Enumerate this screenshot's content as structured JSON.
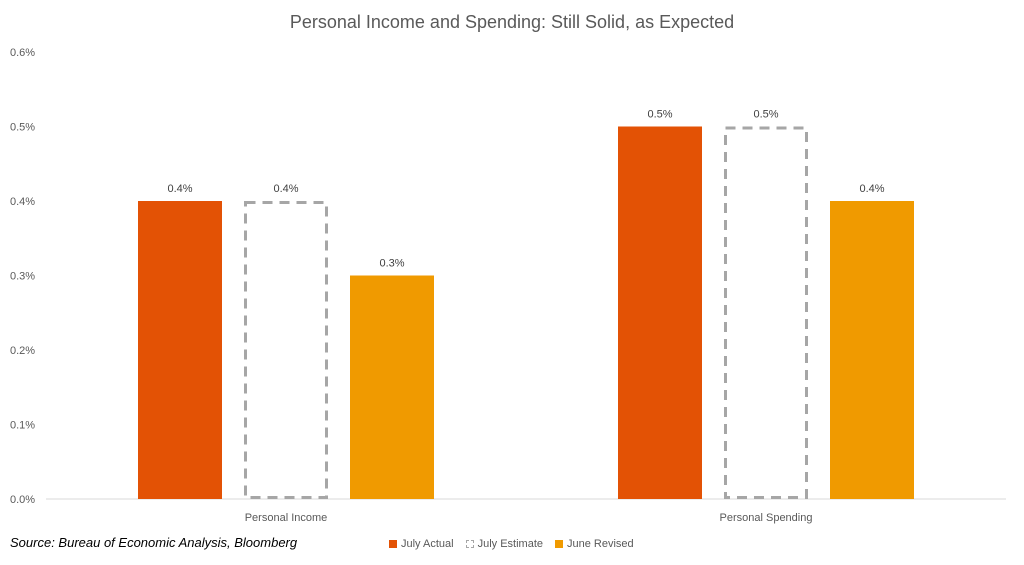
{
  "chart_data": {
    "type": "bar",
    "title": "Personal Income and Spending: Still Solid, as Expected",
    "categories": [
      "Personal Income",
      "Personal Spending"
    ],
    "series": [
      {
        "name": "July Actual",
        "values": [
          0.4,
          0.5
        ],
        "color": "#E35205",
        "style": "solid"
      },
      {
        "name": "July Estimate",
        "values": [
          0.4,
          0.5
        ],
        "color": "#A6A6A6",
        "style": "dashed"
      },
      {
        "name": "June Revised",
        "values": [
          0.3,
          0.4
        ],
        "color": "#F09A00",
        "style": "solid"
      }
    ],
    "ylim": [
      0,
      0.6
    ],
    "yticks": [
      0,
      0.1,
      0.2,
      0.3,
      0.4,
      0.5,
      0.6
    ],
    "ytick_labels": [
      "0.0%",
      "0.1%",
      "0.2%",
      "0.3%",
      "0.4%",
      "0.5%",
      "0.6%"
    ],
    "data_labels": [
      [
        "0.4%",
        "0.5%"
      ],
      [
        "0.4%",
        "0.5%"
      ],
      [
        "0.3%",
        "0.4%"
      ]
    ],
    "legend_position": "bottom",
    "grid": false
  },
  "source": "Source: Bureau of Economic Analysis, Bloomberg"
}
